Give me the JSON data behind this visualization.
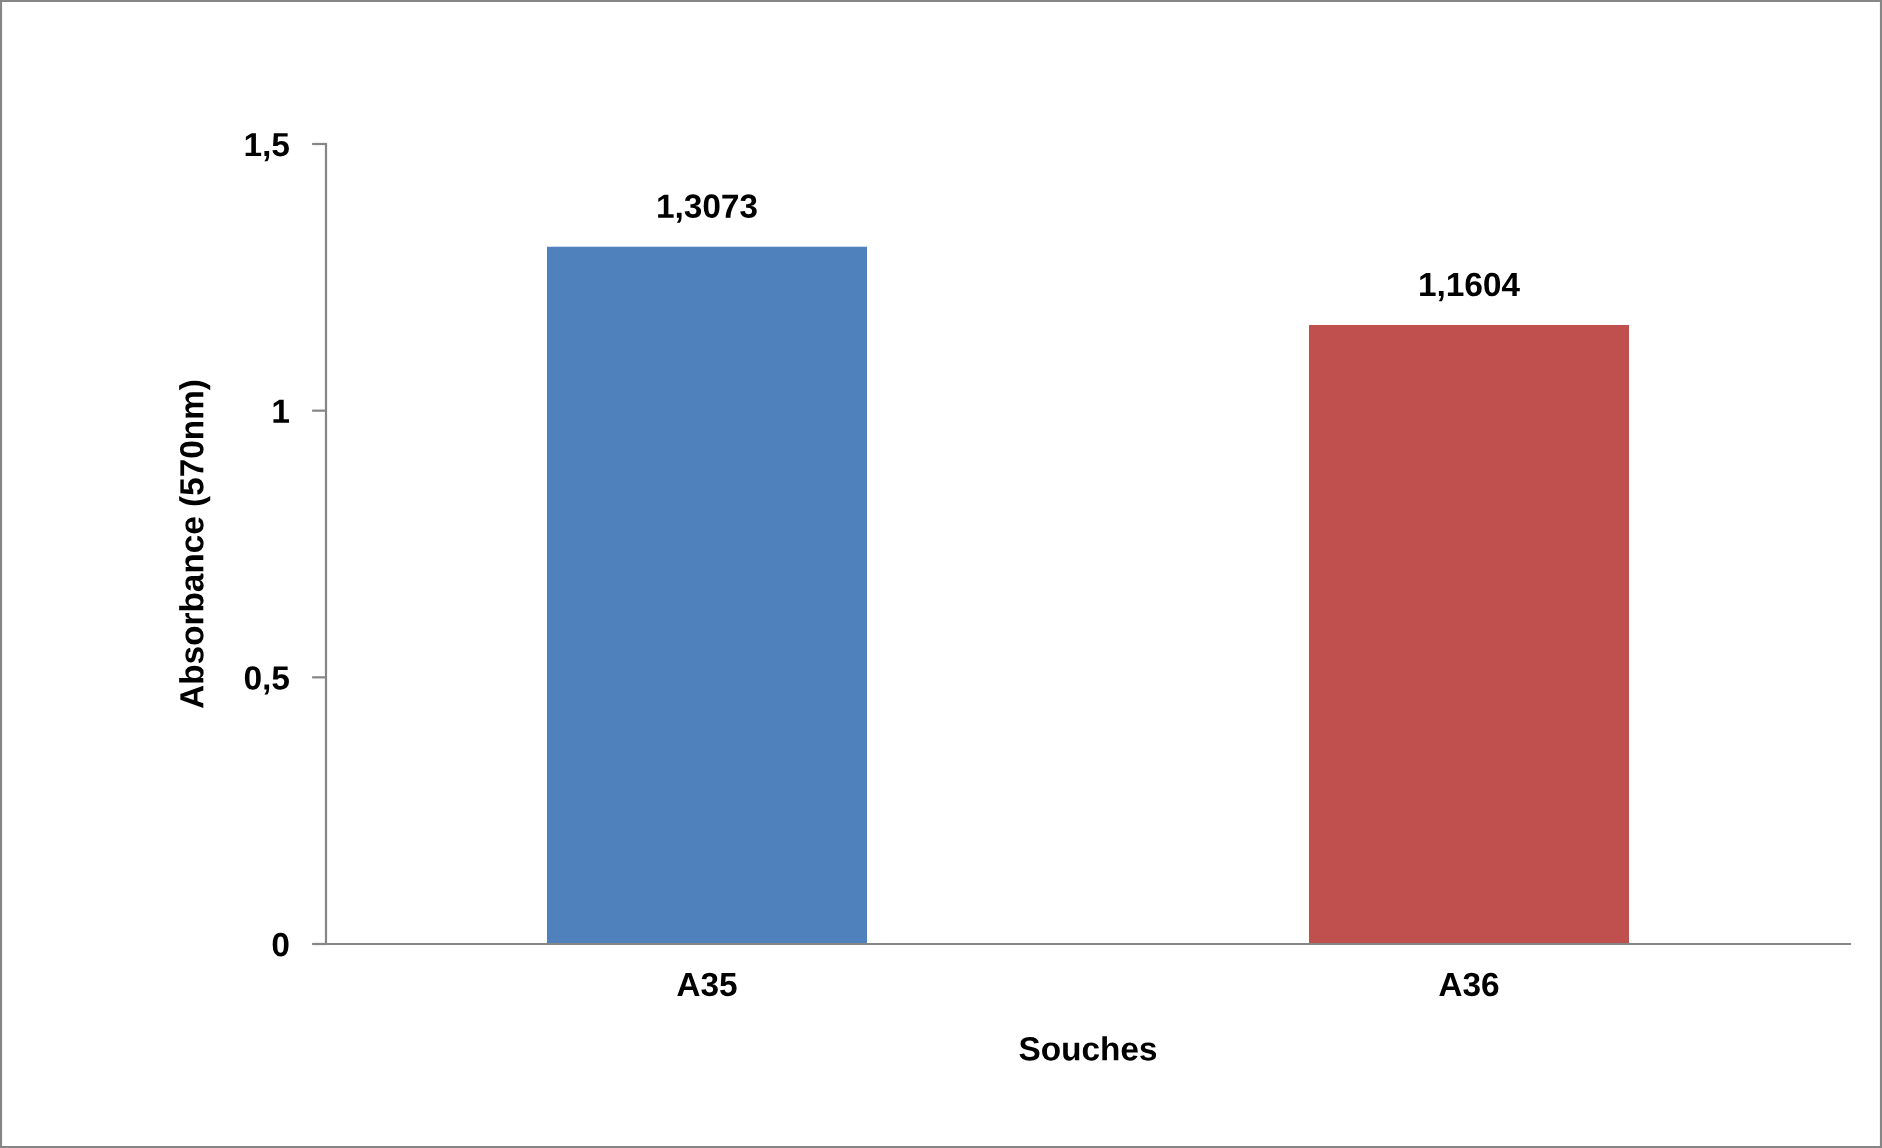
{
  "chart_data": {
    "type": "bar",
    "xlabel": "Souches",
    "ylabel": "Absorbance (570nm)",
    "categories": [
      "A35",
      "A36"
    ],
    "values": [
      1.3073,
      1.1604
    ],
    "colors": [
      "#4f81bd",
      "#c0504d"
    ],
    "value_labels": [
      "1,3073",
      "1,1604"
    ],
    "ylim": [
      0,
      1.5
    ],
    "yticks": [
      0,
      {
        "value": 0.5,
        "label": "0,5"
      },
      1,
      {
        "value": 1.5,
        "label": "1,5"
      }
    ],
    "grid": false,
    "legend": false
  }
}
